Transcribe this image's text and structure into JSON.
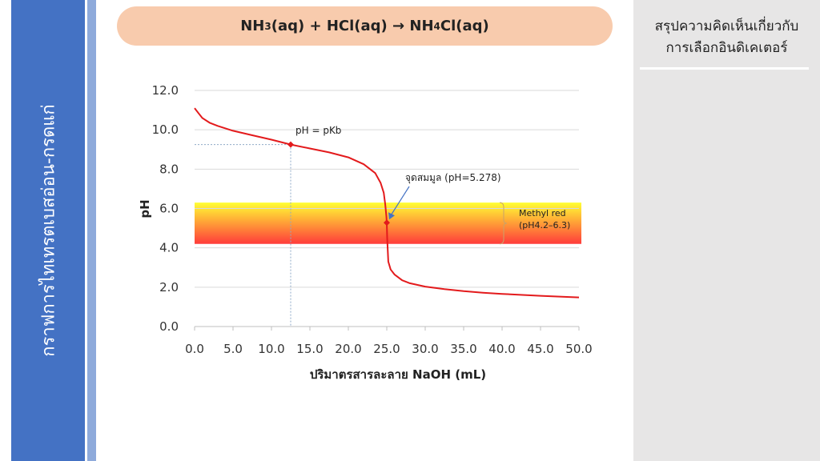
{
  "sidebar": {
    "title": "กราฟการไทเทรตเบสอ่อน-กรดแก่"
  },
  "equation": {
    "part1": "NH",
    "sub1": "3",
    "part2": "(aq) + HCl(aq) → NH",
    "sub2": "4",
    "part3": "Cl(aq)"
  },
  "right_panel": {
    "line1": "สรุปความคิดเห็นเกี่ยวกับ",
    "line2": "การเลือกอินดิเคเตอร์"
  },
  "colors": {
    "curve": "#e31a1c",
    "band_top": "#ffff33",
    "band_bottom": "#ff3b3b",
    "sidebar": "#4472c4",
    "equation_bg": "#f8cbad",
    "arrow": "#4472c4"
  },
  "chart_data": {
    "type": "line",
    "xlabel": "ปริมาตรสารละลาย NaOH (mL)",
    "ylabel": "pH",
    "xlim": [
      0,
      50
    ],
    "ylim": [
      0,
      12
    ],
    "x_ticks": [
      "0.0",
      "5.0",
      "10.0",
      "15.0",
      "20.0",
      "25.0",
      "30.0",
      "35.0",
      "40.0",
      "45.0",
      "50.0"
    ],
    "y_ticks": [
      "0.0",
      "2.0",
      "4.0",
      "6.0",
      "8.0",
      "10.0",
      "12.0"
    ],
    "grid": "horizontal",
    "series": [
      {
        "x": [
          0,
          0.5,
          1,
          2,
          3,
          5,
          7.5,
          10,
          12.5,
          15,
          17.5,
          20,
          22,
          23.5,
          24.2,
          24.6,
          24.8,
          24.95,
          25,
          25.05,
          25.2,
          25.5,
          26,
          27,
          28,
          30,
          32.5,
          35,
          37.5,
          40,
          45,
          50
        ],
        "y": [
          11.1,
          10.85,
          10.6,
          10.35,
          10.2,
          9.95,
          9.72,
          9.5,
          9.25,
          9.05,
          8.85,
          8.6,
          8.25,
          7.8,
          7.3,
          6.8,
          6.2,
          5.6,
          5.278,
          4.5,
          3.3,
          2.9,
          2.65,
          2.35,
          2.2,
          2.03,
          1.9,
          1.8,
          1.72,
          1.66,
          1.56,
          1.48
        ]
      }
    ],
    "markers": [
      {
        "x": 12.5,
        "y": 9.25,
        "label": "pH = pKb"
      },
      {
        "x": 25,
        "y": 5.278,
        "label": "จุดสมมูล (pH=5.278)"
      }
    ],
    "indicator_band": {
      "name": "Methyl red",
      "range_label": "(pH4.2–6.3)",
      "y_low": 4.2,
      "y_high": 6.3
    }
  }
}
